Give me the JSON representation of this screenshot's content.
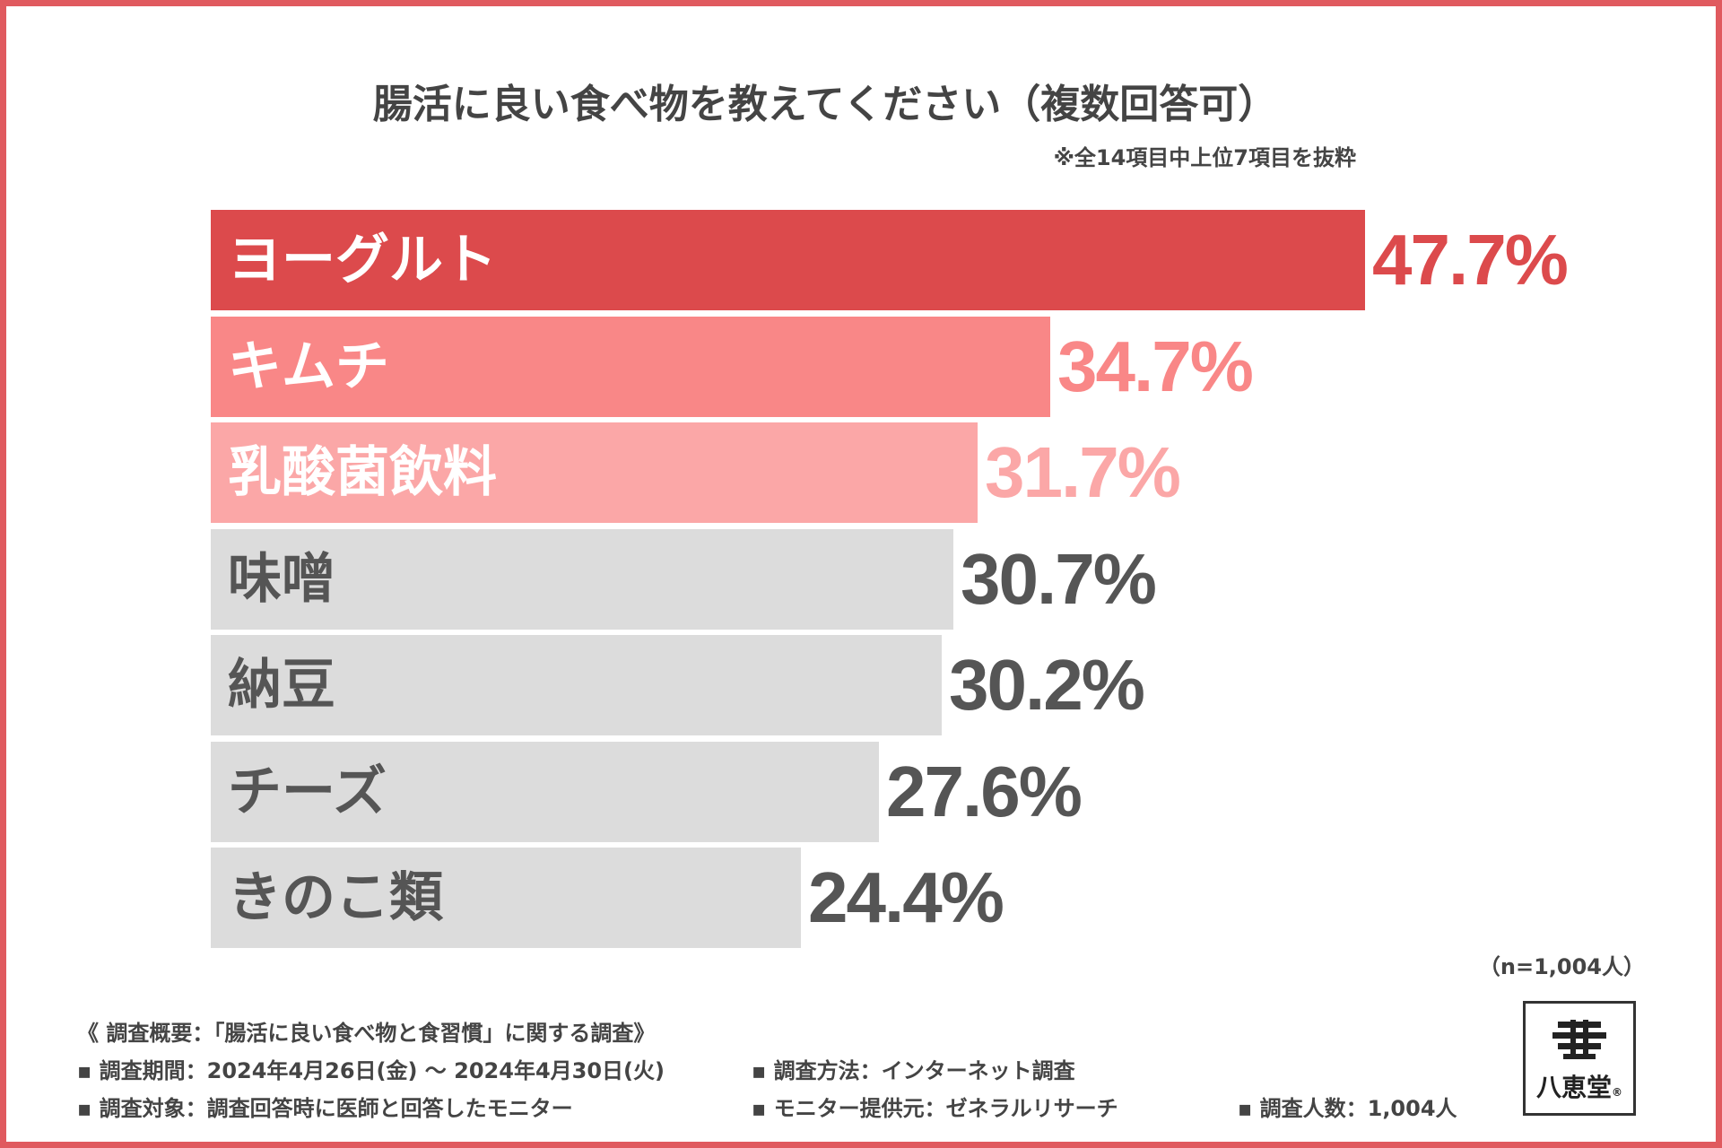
{
  "header": {
    "title": "腸活に良い食べ物を教えてください（複数回答可）",
    "note": "※全14項目中上位7項目を抜粋"
  },
  "chart_data": {
    "type": "bar",
    "orientation": "horizontal",
    "title": "腸活に良い食べ物を教えてください（複数回答可）",
    "categories": [
      "ヨーグルト",
      "キムチ",
      "乳酸菌飲料",
      "味噌",
      "納豆",
      "チーズ",
      "きのこ類"
    ],
    "values": [
      47.7,
      34.7,
      31.7,
      30.7,
      30.2,
      27.6,
      24.4
    ],
    "value_labels": [
      "47.7%",
      "34.7%",
      "31.7%",
      "30.7%",
      "30.2%",
      "27.6%",
      "24.4%"
    ],
    "bar_colors": [
      "#dc4a4c",
      "#f98787",
      "#fba7a7",
      "#dcdcdc",
      "#dcdcdc",
      "#dcdcdc",
      "#dcdcdc"
    ],
    "label_colors": [
      "#ffffff",
      "#ffffff",
      "#ffffff",
      "#555555",
      "#555555",
      "#555555",
      "#555555"
    ],
    "value_colors": [
      "#dc4a4c",
      "#f98787",
      "#fba7a7",
      "#555555",
      "#555555",
      "#555555",
      "#555555"
    ],
    "unit": "%",
    "xlim": [
      0,
      47.7
    ],
    "sample_note": "（n=1,004人）"
  },
  "footer": {
    "summary": "《 調査概要：「腸活に良い食べ物と食習慣」に関する調査》",
    "period": "▪ 調査期間：2024年4月26日(金) 〜 2024年4月30日(火)",
    "target": "▪ 調査対象：調査回答時に医師と回答したモニター",
    "method": "▪ 調査方法：インターネット調査",
    "provider": "▪ モニター提供元：ゼネラルリサーチ",
    "count": "▪ 調査人数：1,004人"
  },
  "brand": {
    "name": "八恵堂",
    "registered": "®"
  }
}
